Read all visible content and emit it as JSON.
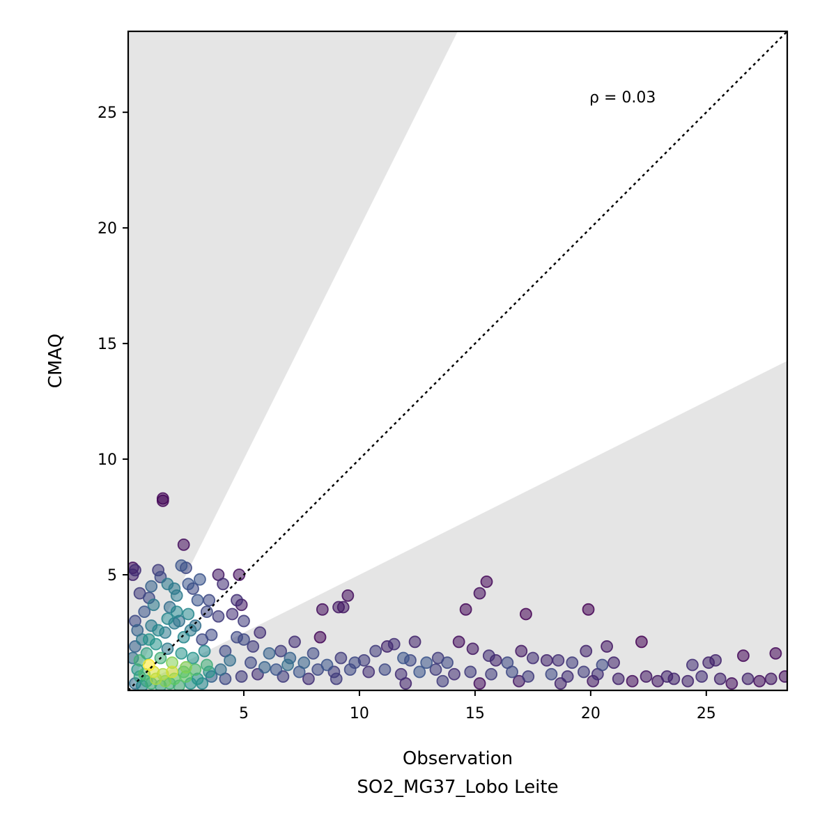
{
  "chart_data": {
    "type": "scatter",
    "title": "",
    "xlabel": "Observation",
    "xlabel_line2": "SO2_MG37_Lobo Leite",
    "ylabel": "CMAQ",
    "xlim": [
      0,
      28.5
    ],
    "ylim": [
      0,
      28.5
    ],
    "xticks": [
      5,
      10,
      15,
      20,
      25
    ],
    "yticks": [
      5,
      10,
      15,
      20,
      25
    ],
    "annotation": "ρ = 0.03",
    "reference_line": {
      "style": "dotted",
      "description": "1:1 line",
      "points": [
        [
          0,
          0
        ],
        [
          28.5,
          28.5
        ]
      ]
    },
    "shaded_regions": [
      {
        "name": "upper",
        "slope_from": 2.0,
        "color": "#e5e5e5"
      },
      {
        "name": "lower",
        "slope_to": 0.5,
        "color": "#e5e5e5"
      }
    ],
    "colormap": "viridis",
    "colors": {
      "low_density": "#440154",
      "mid_density": "#31688e",
      "high_density": "#fde725",
      "shade": "#e5e5e5"
    },
    "points": [
      [
        1.5,
        8.3
      ],
      [
        1.5,
        8.2
      ],
      [
        2.4,
        6.3
      ],
      [
        0.2,
        5.3
      ],
      [
        0.2,
        5.0
      ],
      [
        0.3,
        5.2
      ],
      [
        1.3,
        5.2
      ],
      [
        1.4,
        4.9
      ],
      [
        2.3,
        5.4
      ],
      [
        2.5,
        5.3
      ],
      [
        2.6,
        4.6
      ],
      [
        2.8,
        4.4
      ],
      [
        3.1,
        4.8
      ],
      [
        3.9,
        5.0
      ],
      [
        4.8,
        5.0
      ],
      [
        4.1,
        4.6
      ],
      [
        4.7,
        3.9
      ],
      [
        4.9,
        3.7
      ],
      [
        5.0,
        3.0
      ],
      [
        3.5,
        3.9
      ],
      [
        3.9,
        3.2
      ],
      [
        4.5,
        3.3
      ],
      [
        0.5,
        4.2
      ],
      [
        0.9,
        4.0
      ],
      [
        1.1,
        3.7
      ],
      [
        2.0,
        4.4
      ],
      [
        1.8,
        3.6
      ],
      [
        2.2,
        3.0
      ],
      [
        2.7,
        2.6
      ],
      [
        3.2,
        2.2
      ],
      [
        2.9,
        2.8
      ],
      [
        2.4,
        2.3
      ],
      [
        2.0,
        2.9
      ],
      [
        1.6,
        2.5
      ],
      [
        1.0,
        2.8
      ],
      [
        0.7,
        3.4
      ],
      [
        0.3,
        3.0
      ],
      [
        0.4,
        2.6
      ],
      [
        0.6,
        2.2
      ],
      [
        1.2,
        2.0
      ],
      [
        1.7,
        1.8
      ],
      [
        2.3,
        1.6
      ],
      [
        2.8,
        1.4
      ],
      [
        3.3,
        1.7
      ],
      [
        3.6,
        2.4
      ],
      [
        4.2,
        1.7
      ],
      [
        4.7,
        2.3
      ],
      [
        5.0,
        2.2
      ],
      [
        5.7,
        2.5
      ],
      [
        5.4,
        1.9
      ],
      [
        6.1,
        1.6
      ],
      [
        6.6,
        1.7
      ],
      [
        7.2,
        2.1
      ],
      [
        8.3,
        2.3
      ],
      [
        8.4,
        3.5
      ],
      [
        9.1,
        3.6
      ],
      [
        9.3,
        3.6
      ],
      [
        9.5,
        4.1
      ],
      [
        7.0,
        1.4
      ],
      [
        7.6,
        1.2
      ],
      [
        8.0,
        1.6
      ],
      [
        8.6,
        1.1
      ],
      [
        9.2,
        1.4
      ],
      [
        9.8,
        1.2
      ],
      [
        10.2,
        1.3
      ],
      [
        10.7,
        1.7
      ],
      [
        11.2,
        1.9
      ],
      [
        11.5,
        2.0
      ],
      [
        11.9,
        1.4
      ],
      [
        12.2,
        1.3
      ],
      [
        12.4,
        2.1
      ],
      [
        12.9,
        1.2
      ],
      [
        13.4,
        1.4
      ],
      [
        13.8,
        1.2
      ],
      [
        14.3,
        2.1
      ],
      [
        14.6,
        3.5
      ],
      [
        14.9,
        1.8
      ],
      [
        15.2,
        4.2
      ],
      [
        15.5,
        4.7
      ],
      [
        15.6,
        1.5
      ],
      [
        15.9,
        1.3
      ],
      [
        16.4,
        1.2
      ],
      [
        17.0,
        1.7
      ],
      [
        17.2,
        3.3
      ],
      [
        17.5,
        1.4
      ],
      [
        18.1,
        1.3
      ],
      [
        18.6,
        1.3
      ],
      [
        19.2,
        1.2
      ],
      [
        19.8,
        1.7
      ],
      [
        19.9,
        3.5
      ],
      [
        20.5,
        1.1
      ],
      [
        20.7,
        1.9
      ],
      [
        21.0,
        1.2
      ],
      [
        22.2,
        2.1
      ],
      [
        23.3,
        0.6
      ],
      [
        24.4,
        1.1
      ],
      [
        25.1,
        1.2
      ],
      [
        25.4,
        1.3
      ],
      [
        26.6,
        1.5
      ],
      [
        28.0,
        1.6
      ],
      [
        0.8,
        1.6
      ],
      [
        1.4,
        1.4
      ],
      [
        0.9,
        1.1
      ],
      [
        1.9,
        1.2
      ],
      [
        2.5,
        1.0
      ],
      [
        3.4,
        1.1
      ],
      [
        4.0,
        0.9
      ],
      [
        4.4,
        1.3
      ],
      [
        5.3,
        1.2
      ],
      [
        5.9,
        1.0
      ],
      [
        6.4,
        0.9
      ],
      [
        6.9,
        1.1
      ],
      [
        7.4,
        0.8
      ],
      [
        8.2,
        0.9
      ],
      [
        8.9,
        0.8
      ],
      [
        9.6,
        0.9
      ],
      [
        10.4,
        0.8
      ],
      [
        11.1,
        0.9
      ],
      [
        11.8,
        0.7
      ],
      [
        12.6,
        0.8
      ],
      [
        13.3,
        0.9
      ],
      [
        14.1,
        0.7
      ],
      [
        14.8,
        0.8
      ],
      [
        15.7,
        0.7
      ],
      [
        16.6,
        0.8
      ],
      [
        17.3,
        0.6
      ],
      [
        18.3,
        0.7
      ],
      [
        19.0,
        0.6
      ],
      [
        19.7,
        0.8
      ],
      [
        20.3,
        0.7
      ],
      [
        21.2,
        0.5
      ],
      [
        21.8,
        0.4
      ],
      [
        22.4,
        0.6
      ],
      [
        22.9,
        0.4
      ],
      [
        23.6,
        0.5
      ],
      [
        24.2,
        0.4
      ],
      [
        24.8,
        0.6
      ],
      [
        25.6,
        0.5
      ],
      [
        26.1,
        0.3
      ],
      [
        26.8,
        0.5
      ],
      [
        27.3,
        0.4
      ],
      [
        27.8,
        0.5
      ],
      [
        28.4,
        0.6
      ],
      [
        12.0,
        0.3
      ],
      [
        13.6,
        0.4
      ],
      [
        15.2,
        0.3
      ],
      [
        16.9,
        0.4
      ],
      [
        18.7,
        0.3
      ],
      [
        20.1,
        0.4
      ],
      [
        9.0,
        0.5
      ],
      [
        7.8,
        0.5
      ],
      [
        6.7,
        0.6
      ],
      [
        5.6,
        0.7
      ],
      [
        4.9,
        0.6
      ],
      [
        4.2,
        0.5
      ],
      [
        3.6,
        0.6
      ],
      [
        3.0,
        0.5
      ],
      [
        2.5,
        0.6
      ],
      [
        2.0,
        0.5
      ],
      [
        1.6,
        0.4
      ],
      [
        1.2,
        0.5
      ],
      [
        0.8,
        0.4
      ],
      [
        0.5,
        0.6
      ],
      [
        0.3,
        0.3
      ],
      [
        0.6,
        0.2
      ],
      [
        1.0,
        0.3
      ],
      [
        1.4,
        0.2
      ],
      [
        1.8,
        0.3
      ],
      [
        2.2,
        0.2
      ],
      [
        2.7,
        0.3
      ],
      [
        3.2,
        0.3
      ],
      [
        0.4,
        0.9
      ],
      [
        0.7,
        0.7
      ],
      [
        1.1,
        0.8
      ],
      [
        1.5,
        0.7
      ],
      [
        1.9,
        0.8
      ],
      [
        2.4,
        0.8
      ],
      [
        2.9,
        0.9
      ],
      [
        3.5,
        0.8
      ],
      [
        0.2,
        1.4
      ],
      [
        0.3,
        1.9
      ],
      [
        0.5,
        1.3
      ],
      [
        0.9,
        2.2
      ],
      [
        1.3,
        2.6
      ],
      [
        1.7,
        3.1
      ],
      [
        2.1,
        3.4
      ],
      [
        2.6,
        3.3
      ],
      [
        3.0,
        3.9
      ],
      [
        3.4,
        3.4
      ],
      [
        1.0,
        4.5
      ],
      [
        1.7,
        4.6
      ],
      [
        2.1,
        4.1
      ]
    ]
  }
}
